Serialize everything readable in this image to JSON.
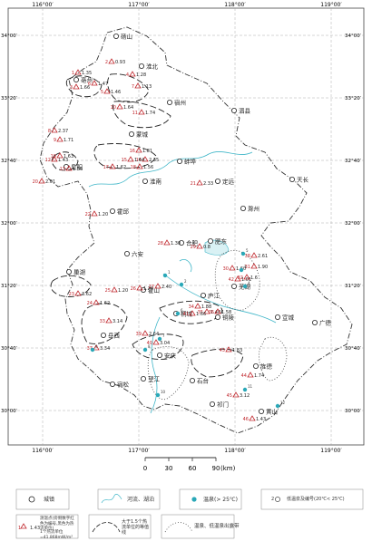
{
  "map": {
    "top_lon": [
      "116°00′",
      "117°00′",
      "118°00′",
      "119°00′"
    ],
    "bottom_lon": [
      "116°00′",
      "117°00′",
      "118°00′",
      "119°00′"
    ],
    "left_lat": [
      "34°00′",
      "33°20′",
      "32°40′",
      "32°00′",
      "31°20′",
      "30°40′",
      "30°00′"
    ],
    "right_lat": [
      "34°00′",
      "33°20′",
      "32°40′",
      "32°00′",
      "31°20′",
      "30°40′",
      "30°00′"
    ],
    "cities": [
      {
        "name": "砀山"
      },
      {
        "name": "淮北"
      },
      {
        "name": "亳州"
      },
      {
        "name": "宿州"
      },
      {
        "name": "泗县"
      },
      {
        "name": "蒙城"
      },
      {
        "name": "阜阳"
      },
      {
        "name": "蚌埠"
      },
      {
        "name": "淮南"
      },
      {
        "name": "定远"
      },
      {
        "name": "天长"
      },
      {
        "name": "滁州"
      },
      {
        "name": "霍邱"
      },
      {
        "name": "合肥"
      },
      {
        "name": "六安"
      },
      {
        "name": "巢湖"
      },
      {
        "name": "芜湖"
      },
      {
        "name": "宣城"
      },
      {
        "name": "广德"
      },
      {
        "name": "桐城"
      },
      {
        "name": "铜陵"
      },
      {
        "name": "岳西"
      },
      {
        "name": "安庆"
      },
      {
        "name": "宿松"
      },
      {
        "name": "石台"
      },
      {
        "name": "望江"
      },
      {
        "name": "旌德"
      },
      {
        "name": "祁门"
      },
      {
        "name": "黄山"
      },
      {
        "name": "霍山"
      },
      {
        "name": "庐江"
      },
      {
        "name": "肥东"
      }
    ],
    "heat_points": [
      {
        "id": "1",
        "value": "1.35"
      },
      {
        "id": "2",
        "value": "0.93"
      },
      {
        "id": "3",
        "value": "1.66"
      },
      {
        "id": "4",
        "value": "1.28"
      },
      {
        "id": "5",
        "value": "1.46"
      },
      {
        "id": "6",
        "value": "1.47"
      },
      {
        "id": "7",
        "value": "1.13"
      },
      {
        "id": "8",
        "value": "2.37"
      },
      {
        "id": "9",
        "value": "1.71"
      },
      {
        "id": "10",
        "value": "1.64"
      },
      {
        "id": "11",
        "value": "1.74"
      },
      {
        "id": "12",
        "value": "1.43"
      },
      {
        "id": "13",
        "value": "1.56"
      },
      {
        "id": "14",
        "value": "2.35"
      },
      {
        "id": "15",
        "value": "1.64"
      },
      {
        "id": "16",
        "value": "1.81"
      },
      {
        "id": "17",
        "value": "1.62"
      },
      {
        "id": "18",
        "value": "1.56"
      },
      {
        "id": "19",
        "value": "1.63"
      },
      {
        "id": "20",
        "value": "2.01"
      },
      {
        "id": "21",
        "value": "2.33"
      },
      {
        "id": "22",
        "value": "1.20"
      },
      {
        "id": "23",
        "value": "3.62"
      },
      {
        "id": "24",
        "value": "1.62"
      },
      {
        "id": "25",
        "value": "1.20"
      },
      {
        "id": "26",
        "value": "1.20"
      },
      {
        "id": "27",
        "value": "2.40"
      },
      {
        "id": "28",
        "value": "1.30"
      },
      {
        "id": "29",
        "value": "0.8"
      },
      {
        "id": "30",
        "value": "1.60"
      },
      {
        "id": "31",
        "value": "1.90"
      },
      {
        "id": "32",
        "value": "1.6"
      },
      {
        "id": "33",
        "value": "3.14"
      },
      {
        "id": "34",
        "value": "1.88"
      },
      {
        "id": "35",
        "value": "1.48"
      },
      {
        "id": "36",
        "value": "1.58"
      },
      {
        "id": "37",
        "value": "3.34"
      },
      {
        "id": "38",
        "value": "2.61"
      },
      {
        "id": "39",
        "value": "2.64"
      },
      {
        "id": "40",
        "value": "3.04"
      },
      {
        "id": "41",
        "value": "1.66"
      },
      {
        "id": "42",
        "value": "1.01"
      },
      {
        "id": "43",
        "value": "1.83"
      },
      {
        "id": "44",
        "value": "1.74"
      },
      {
        "id": "45",
        "value": "3.12"
      },
      {
        "id": "46",
        "value": "1.43"
      }
    ],
    "hot_springs": [
      "1",
      "2",
      "3",
      "4",
      "5",
      "6",
      "7",
      "8",
      "9",
      "10",
      "11",
      "12"
    ],
    "scale": {
      "ticks": [
        "0",
        "30",
        "60",
        "90"
      ],
      "unit": "(km)"
    }
  },
  "legend": {
    "city": "城镇",
    "river": "河流、湖泊",
    "hot_spring": "温泉(> 25℃)",
    "low_spring": "低温泉及编号(20℃< 25℃)",
    "heat_point_label": "测温点(旁侧数字红色为编号,黑色为热流单位)",
    "heat_point_sample": {
      "id": "1",
      "value": "1.43"
    },
    "heat_unit_note": "1个热流单位=41.868mW/m²",
    "contour": "大于1.5个热流单位的等值线",
    "anomaly": "温泉、低温泉出露带",
    "low_spring_sample": "2"
  },
  "colors": {
    "heat_id": "#c0282e",
    "hot_spring": "#2aa8b8",
    "river": "#3fb6c8",
    "border": "#333333"
  }
}
